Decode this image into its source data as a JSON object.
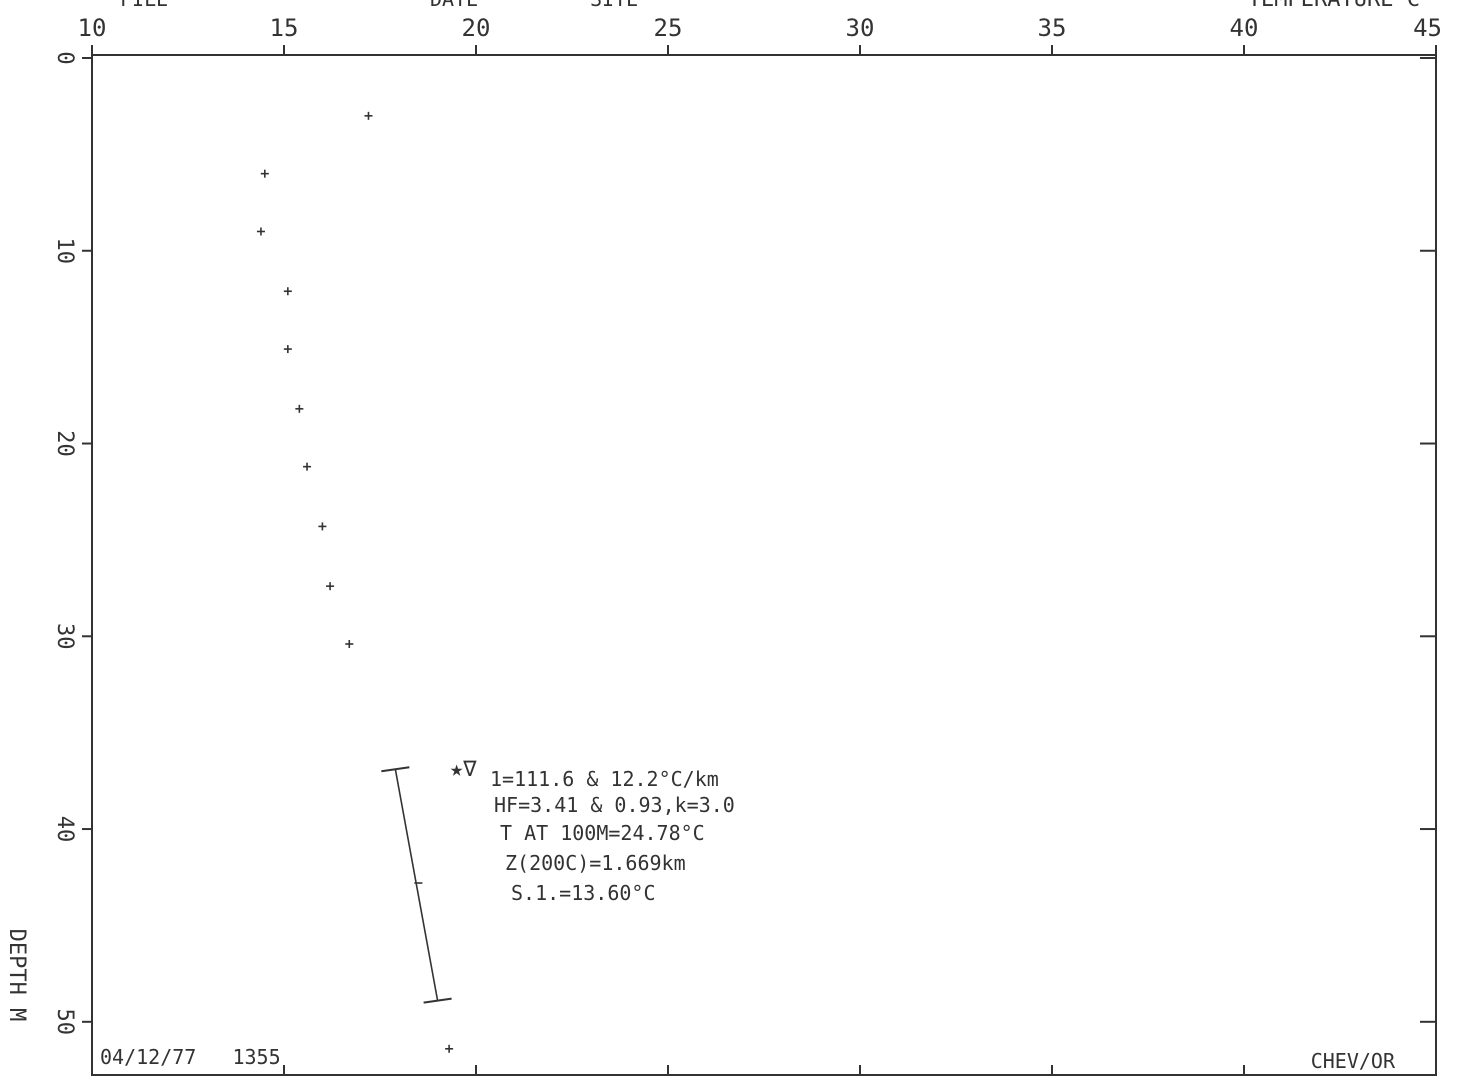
{
  "header_fragments": [
    "FILE",
    "DATE",
    "SITE"
  ],
  "chart_data": {
    "type": "scatter",
    "x_label": "TEMPERATURE C",
    "y_label": "DEPTH M",
    "x_range": [
      10,
      45
    ],
    "y_range": [
      0,
      52.5
    ],
    "y_inverted": true,
    "x_ticks": [
      "10",
      "15",
      "20",
      "25",
      "30",
      "35",
      "40",
      "45"
    ],
    "y_ticks": [
      "0",
      "10",
      "20",
      "30",
      "40",
      "50"
    ],
    "grid": false,
    "points": [
      {
        "x": 17.2,
        "y": 3.0
      },
      {
        "x": 14.5,
        "y": 6.0
      },
      {
        "x": 14.4,
        "y": 9.0
      },
      {
        "x": 15.1,
        "y": 12.1
      },
      {
        "x": 15.1,
        "y": 15.1
      },
      {
        "x": 15.4,
        "y": 18.2
      },
      {
        "x": 15.6,
        "y": 21.2
      },
      {
        "x": 16.0,
        "y": 24.3
      },
      {
        "x": 16.2,
        "y": 27.4
      },
      {
        "x": 16.7,
        "y": 30.4
      },
      {
        "x": 19.3,
        "y": 51.4
      }
    ],
    "fit_segment": {
      "start": {
        "x": 17.9,
        "y": 36.9
      },
      "mid": {
        "x": 18.5,
        "y": 42.8
      },
      "end": {
        "x": 19.0,
        "y": 48.9
      }
    },
    "annotation": {
      "symbols": "★∇",
      "lines": [
        "1=111.6 & 12.2°C/km",
        "HF=3.41 & 0.93,k=3.0",
        "T AT 100M=24.78°C",
        "Z(200C)=1.669km",
        "S.1.=13.60°C"
      ]
    },
    "footer_left": "04/12/77   1355",
    "footer_right": "CHEV/OR"
  }
}
